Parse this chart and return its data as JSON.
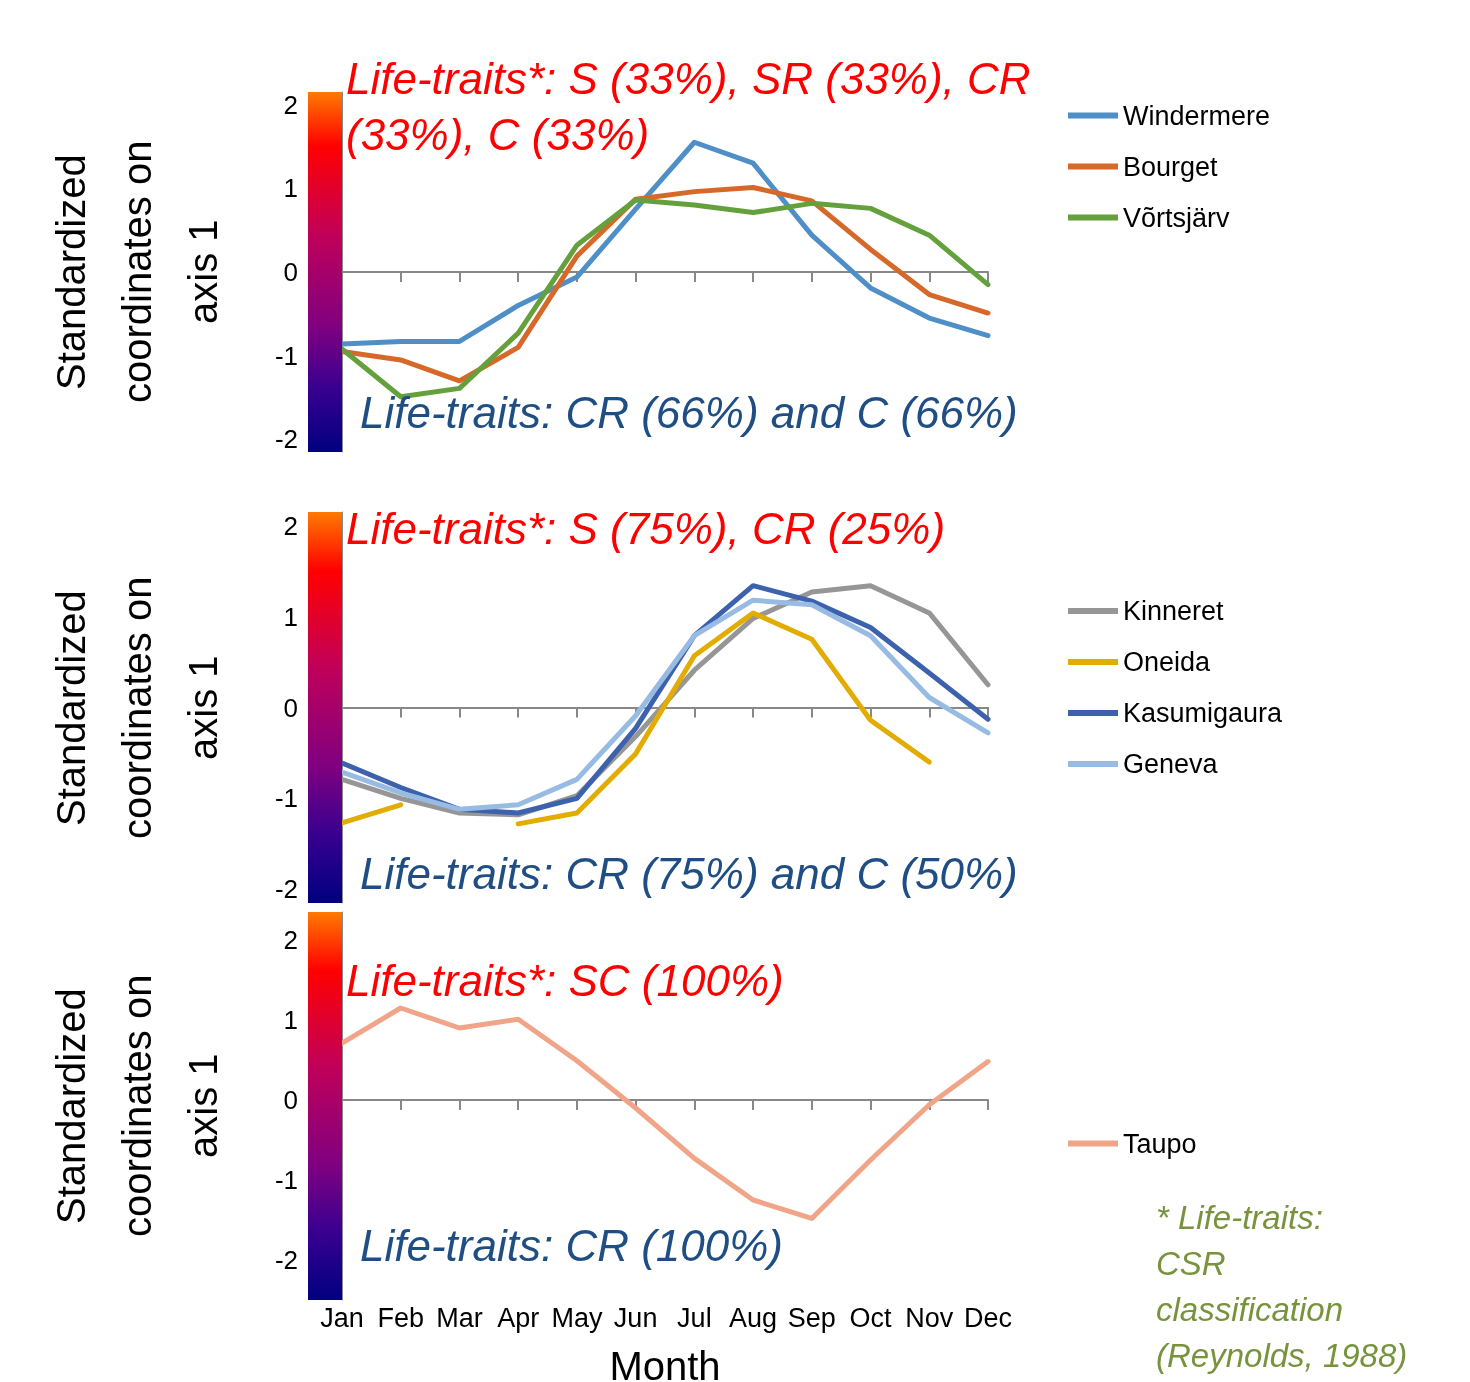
{
  "chart_data": [
    {
      "type": "line",
      "ylabel": "Standardized coordinates on axis 1",
      "categories": [
        null,
        null,
        null,
        null,
        null,
        null,
        null,
        null,
        null,
        null,
        null,
        null
      ],
      "ylim": [
        -2.15,
        2.15
      ],
      "yticks": [
        -2,
        -1,
        0,
        1,
        2
      ],
      "tick_labels": "y",
      "legend": "top right",
      "annotations": [
        "Life-traits*: S (33%), SR (33%), CR (33%), C (33%)",
        "Life-traits: CR (66%) and C (66%)"
      ],
      "series": [
        {
          "name": "Windermere",
          "color": "#4f8fc8",
          "values": [
            -0.86,
            -0.83,
            -0.83,
            -0.4,
            -0.06,
            0.75,
            1.55,
            1.3,
            0.44,
            -0.19,
            -0.55,
            -0.76
          ]
        },
        {
          "name": "Bourget",
          "color": "#d6692a",
          "values": [
            -0.95,
            -1.05,
            -1.3,
            -0.9,
            0.19,
            0.87,
            0.96,
            1.01,
            0.85,
            0.27,
            -0.27,
            -0.49
          ]
        },
        {
          "name": "Võrtsjärv",
          "color": "#64a03c",
          "values": [
            -0.92,
            -1.49,
            -1.39,
            -0.73,
            0.32,
            0.86,
            0.8,
            0.71,
            0.82,
            0.76,
            0.44,
            -0.15
          ]
        }
      ]
    },
    {
      "type": "line",
      "ylabel": "Standardized coordinates on axis 1",
      "categories": [
        null,
        null,
        null,
        null,
        null,
        null,
        null,
        null,
        null,
        null,
        null,
        null
      ],
      "ylim": [
        -2.15,
        2.15
      ],
      "yticks": [
        -2,
        -1,
        0,
        1,
        2
      ],
      "tick_labels": "y",
      "legend": "right",
      "annotations": [
        "Life-traits*: S (75%), CR (25%)",
        "Life-traits: CR (75%) and C (50%)"
      ],
      "series": [
        {
          "name": "Kinneret",
          "color": "#969696",
          "values": [
            -0.79,
            -1.0,
            -1.16,
            -1.18,
            -0.97,
            -0.32,
            0.41,
            0.98,
            1.27,
            1.34,
            1.04,
            0.25
          ]
        },
        {
          "name": "Oneida",
          "color": "#e2ac00",
          "values": [
            -1.27,
            -1.07,
            null,
            -1.28,
            -1.16,
            -0.51,
            0.57,
            1.04,
            0.75,
            -0.14,
            -0.6,
            null
          ]
        },
        {
          "name": "Kasumigaura",
          "color": "#3c62ae",
          "values": [
            -0.61,
            -0.88,
            -1.12,
            -1.16,
            -1.0,
            -0.23,
            0.79,
            1.34,
            1.17,
            0.88,
            0.38,
            -0.13
          ]
        },
        {
          "name": "Geneva",
          "color": "#98bbe3",
          "values": [
            -0.71,
            -0.94,
            -1.12,
            -1.07,
            -0.79,
            -0.09,
            0.79,
            1.18,
            1.13,
            0.79,
            0.11,
            -0.28
          ]
        }
      ]
    },
    {
      "type": "line",
      "ylabel": "Standardized coordinates on axis 1",
      "xlabel": "Month",
      "categories": [
        "Jan",
        "Feb",
        "Mar",
        "Apr",
        "May",
        "Jun",
        "Jul",
        "Aug",
        "Sep",
        "Oct",
        "Nov",
        "Dec"
      ],
      "ylim": [
        -2.5,
        2.35
      ],
      "yticks": [
        -2,
        -1,
        0,
        1,
        2
      ],
      "legend": "right",
      "annotations": [
        "Life-traits*: SC (100%)",
        "Life-traits: CR (100%)",
        "* Life-traits: CSR classification (Reynolds, 1988)"
      ],
      "series": [
        {
          "name": "Taupo",
          "color": "#f0a589",
          "values": [
            0.71,
            1.15,
            0.9,
            1.01,
            0.49,
            -0.1,
            -0.73,
            -1.25,
            -1.48,
            -0.75,
            -0.06,
            0.48
          ]
        }
      ]
    }
  ]
}
